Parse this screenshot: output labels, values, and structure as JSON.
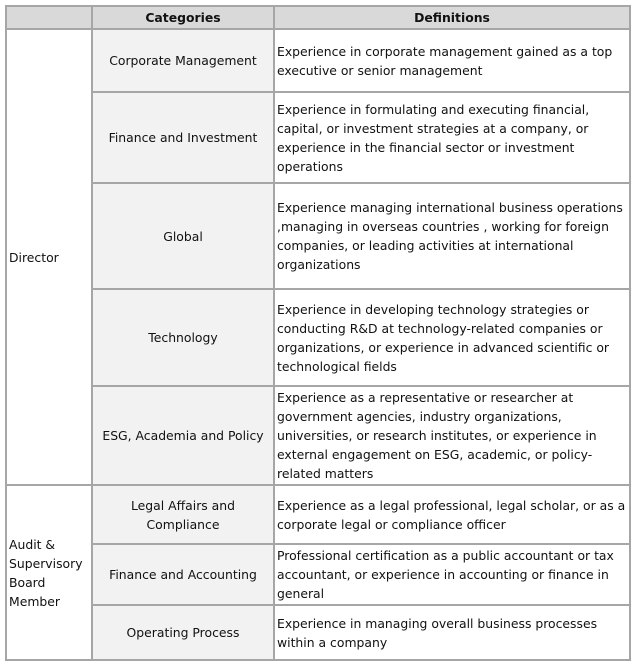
{
  "headers": [
    "",
    "Categories",
    "Definitions"
  ],
  "groups": [
    {
      "label": "Director",
      "rows": [
        {
          "category": "Corporate Management",
          "definition": "Experience in corporate management gained as a top executive or senior management"
        },
        {
          "category": "Finance and Investment",
          "definition": "Experience in formulating and executing financial, capital, or investment strategies at a company, or experience in the financial sector or investment operations"
        },
        {
          "category": "Global",
          "definition": "Experience managing international business operations ,managing in overseas countries , working for foreign companies, or leading activities at international organizations"
        },
        {
          "category": "Technology",
          "definition": "Experience in developing technology strategies or conducting R&D at technology-related companies or organizations, or experience in advanced scientific or technological fields"
        },
        {
          "category": "ESG, Academia and Policy",
          "definition": "Experience as a representative or researcher at government agencies, industry organizations, universities, or research institutes, or experience in external engagement on ESG, academic, or policy-related matters"
        }
      ]
    },
    {
      "label": "Audit & Supervisory Board Member",
      "rows": [
        {
          "category": "Legal Affairs and Compliance",
          "definition": "Experience as a legal professional, legal scholar, or as a corporate legal or compliance officer"
        },
        {
          "category": "Finance and Accounting",
          "definition": "Professional certification as a public accountant or tax accountant, or experience in accounting or finance in general"
        },
        {
          "category": "Operating Process",
          "definition": "Experience in managing overall business processes within a company"
        }
      ]
    }
  ]
}
